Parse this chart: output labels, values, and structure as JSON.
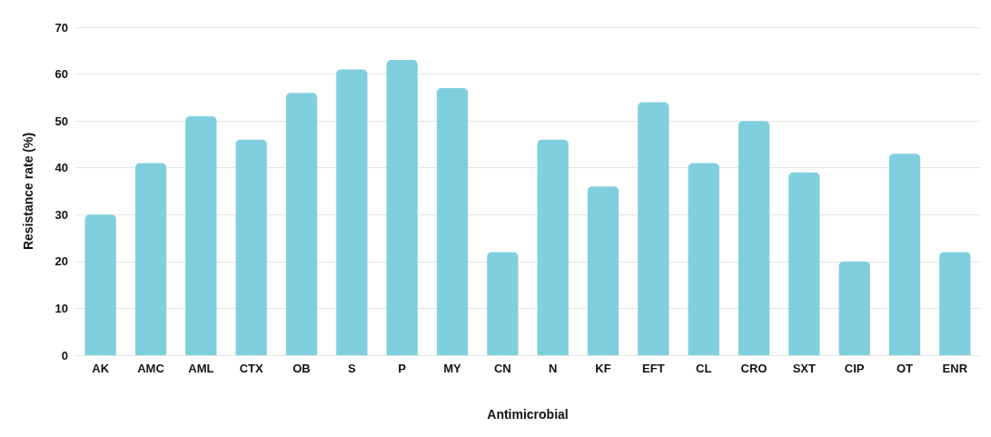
{
  "chart_data": {
    "type": "bar",
    "xlabel": "Antimicrobial",
    "ylabel": "Resistance rate (%)",
    "categories": [
      "AK",
      "AMC",
      "AML",
      "CTX",
      "OB",
      "S",
      "P",
      "MY",
      "CN",
      "N",
      "KF",
      "EFT",
      "CL",
      "CRO",
      "SXT",
      "CIP",
      "OT",
      "ENR"
    ],
    "values": [
      30,
      41,
      51,
      46,
      56,
      61,
      63,
      57,
      22,
      46,
      36,
      54,
      41,
      50,
      39,
      20,
      43,
      22
    ],
    "color": "#80cfdf",
    "ylim": [
      0,
      70
    ],
    "yticks": [
      0,
      10,
      20,
      30,
      40,
      50,
      60,
      70
    ],
    "grid": "y"
  }
}
